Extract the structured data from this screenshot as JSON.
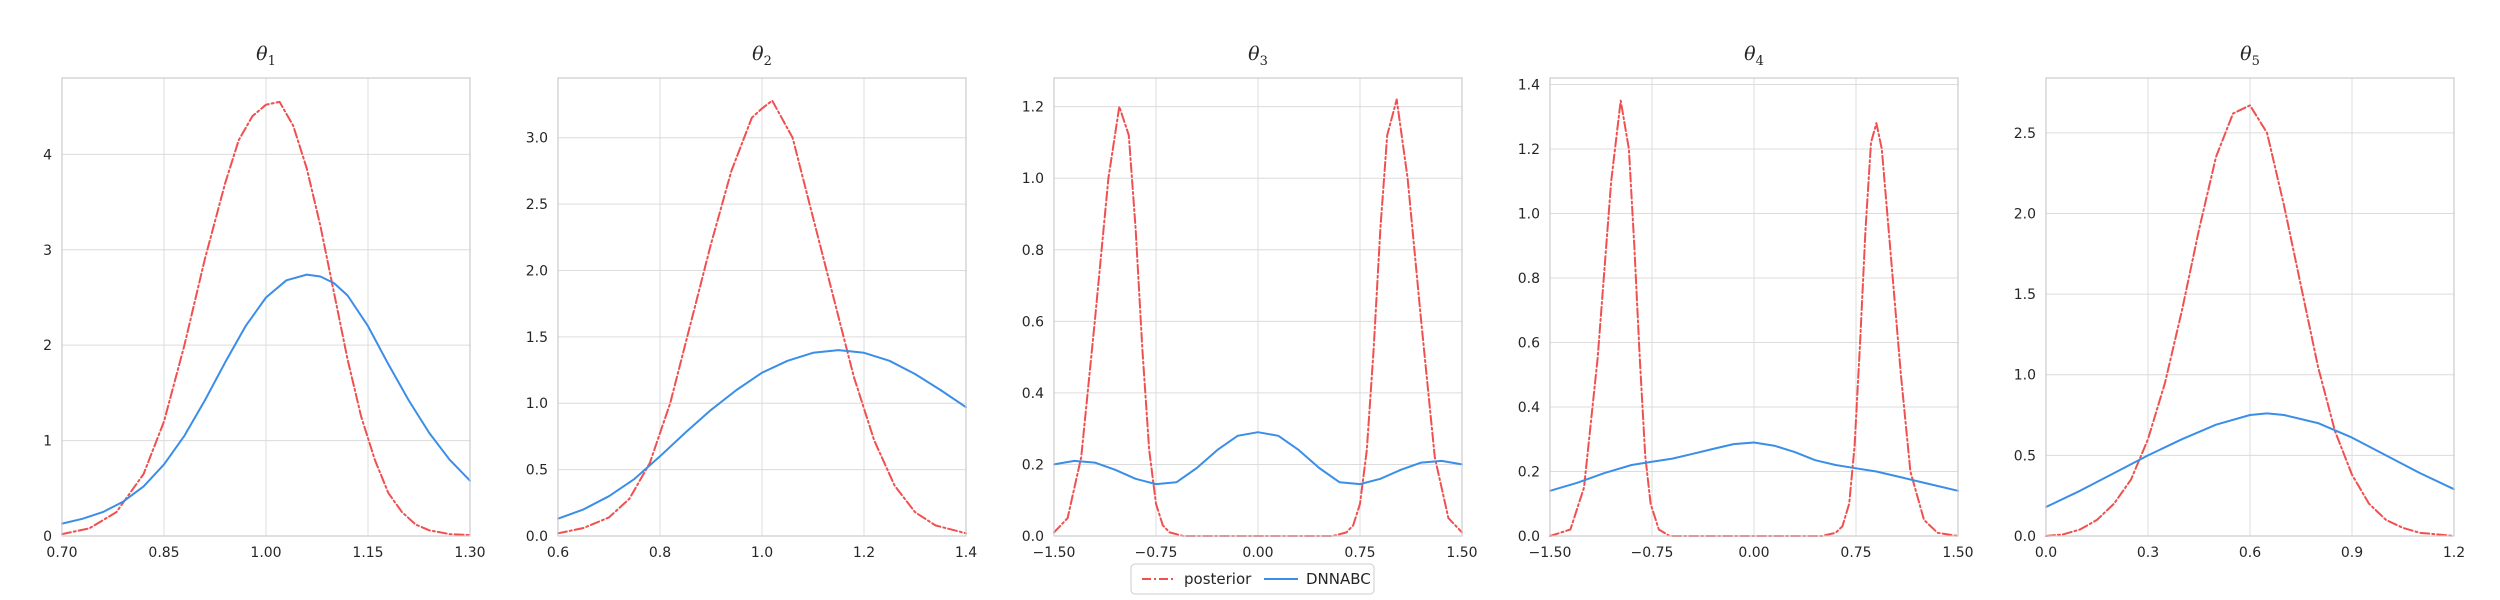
{
  "chart_data": [
    {
      "type": "line",
      "title": "θ1",
      "title_base": "θ",
      "title_sub": "1",
      "xlim": [
        0.7,
        1.3
      ],
      "ylim": [
        0,
        4.8
      ],
      "xticks": [
        0.7,
        0.85,
        1.0,
        1.15,
        1.3
      ],
      "xtick_labels": [
        "0.70",
        "0.85",
        "1.00",
        "1.15",
        "1.30"
      ],
      "yticks": [
        0,
        1,
        2,
        3,
        4
      ],
      "ytick_labels": [
        "0",
        "1",
        "2",
        "3",
        "4"
      ],
      "grid": true,
      "series": [
        {
          "name": "posterior",
          "x": [
            0.7,
            0.74,
            0.78,
            0.82,
            0.85,
            0.88,
            0.91,
            0.94,
            0.96,
            0.98,
            1.0,
            1.02,
            1.04,
            1.06,
            1.08,
            1.1,
            1.12,
            1.14,
            1.16,
            1.18,
            1.2,
            1.22,
            1.24,
            1.27,
            1.3
          ],
          "y": [
            0.02,
            0.08,
            0.25,
            0.65,
            1.2,
            2.0,
            2.9,
            3.7,
            4.15,
            4.4,
            4.52,
            4.55,
            4.3,
            3.85,
            3.25,
            2.55,
            1.85,
            1.25,
            0.8,
            0.45,
            0.25,
            0.12,
            0.06,
            0.02,
            0.01
          ]
        },
        {
          "name": "DNNABC",
          "x": [
            0.7,
            0.73,
            0.76,
            0.79,
            0.82,
            0.85,
            0.88,
            0.91,
            0.94,
            0.97,
            1.0,
            1.03,
            1.06,
            1.08,
            1.1,
            1.12,
            1.15,
            1.18,
            1.21,
            1.24,
            1.27,
            1.3
          ],
          "y": [
            0.13,
            0.18,
            0.25,
            0.36,
            0.52,
            0.75,
            1.05,
            1.42,
            1.82,
            2.2,
            2.5,
            2.68,
            2.74,
            2.72,
            2.65,
            2.52,
            2.2,
            1.8,
            1.42,
            1.08,
            0.8,
            0.58
          ]
        }
      ]
    },
    {
      "type": "line",
      "title": "θ2",
      "title_base": "θ",
      "title_sub": "2",
      "xlim": [
        0.6,
        1.4
      ],
      "ylim": [
        0,
        3.45
      ],
      "xticks": [
        0.6,
        0.8,
        1.0,
        1.2,
        1.4
      ],
      "xtick_labels": [
        "0.6",
        "0.8",
        "1.0",
        "1.2",
        "1.4"
      ],
      "yticks": [
        0,
        0.5,
        1.0,
        1.5,
        2.0,
        2.5,
        3.0
      ],
      "ytick_labels": [
        "0.0",
        "0.5",
        "1.0",
        "1.5",
        "2.0",
        "2.5",
        "3.0"
      ],
      "grid": true,
      "series": [
        {
          "name": "posterior",
          "x": [
            0.6,
            0.65,
            0.7,
            0.74,
            0.78,
            0.82,
            0.86,
            0.9,
            0.94,
            0.98,
            1.0,
            1.02,
            1.06,
            1.1,
            1.14,
            1.18,
            1.22,
            1.26,
            1.3,
            1.34,
            1.4
          ],
          "y": [
            0.02,
            0.06,
            0.14,
            0.28,
            0.55,
            1.0,
            1.6,
            2.2,
            2.75,
            3.15,
            3.22,
            3.28,
            3.0,
            2.4,
            1.8,
            1.2,
            0.72,
            0.38,
            0.18,
            0.08,
            0.02
          ]
        },
        {
          "name": "DNNABC",
          "x": [
            0.6,
            0.65,
            0.7,
            0.75,
            0.8,
            0.85,
            0.9,
            0.95,
            1.0,
            1.05,
            1.1,
            1.15,
            1.2,
            1.25,
            1.3,
            1.35,
            1.4
          ],
          "y": [
            0.13,
            0.2,
            0.3,
            0.43,
            0.6,
            0.78,
            0.95,
            1.1,
            1.23,
            1.32,
            1.38,
            1.4,
            1.38,
            1.32,
            1.22,
            1.1,
            0.97
          ]
        }
      ]
    },
    {
      "type": "line",
      "title": "θ3",
      "title_base": "θ",
      "title_sub": "3",
      "xlim": [
        -1.5,
        1.5
      ],
      "ylim": [
        0,
        1.28
      ],
      "xticks": [
        -1.5,
        -0.75,
        0.0,
        0.75,
        1.5
      ],
      "xtick_labels": [
        "−1.50",
        "−0.75",
        "0.00",
        "0.75",
        "1.50"
      ],
      "yticks": [
        0,
        0.2,
        0.4,
        0.6,
        0.8,
        1.0,
        1.2
      ],
      "ytick_labels": [
        "0.0",
        "0.2",
        "0.4",
        "0.6",
        "0.8",
        "1.0",
        "1.2"
      ],
      "grid": true,
      "series": [
        {
          "name": "posterior",
          "x": [
            -1.5,
            -1.4,
            -1.3,
            -1.2,
            -1.1,
            -1.02,
            -0.95,
            -0.9,
            -0.85,
            -0.8,
            -0.75,
            -0.7,
            -0.65,
            -0.55,
            -0.4,
            0.0,
            0.4,
            0.55,
            0.65,
            0.7,
            0.75,
            0.8,
            0.85,
            0.9,
            0.95,
            1.02,
            1.1,
            1.2,
            1.3,
            1.4,
            1.5
          ],
          "y": [
            0.01,
            0.05,
            0.22,
            0.6,
            1.0,
            1.2,
            1.12,
            0.86,
            0.52,
            0.24,
            0.09,
            0.03,
            0.01,
            0.0,
            0.0,
            0.0,
            0.0,
            0.0,
            0.01,
            0.03,
            0.09,
            0.24,
            0.52,
            0.86,
            1.12,
            1.22,
            1.0,
            0.6,
            0.22,
            0.05,
            0.01
          ]
        },
        {
          "name": "DNNABC",
          "x": [
            -1.5,
            -1.35,
            -1.2,
            -1.05,
            -0.9,
            -0.75,
            -0.6,
            -0.45,
            -0.3,
            -0.15,
            0.0,
            0.15,
            0.3,
            0.45,
            0.6,
            0.75,
            0.9,
            1.05,
            1.2,
            1.35,
            1.5
          ],
          "y": [
            0.2,
            0.21,
            0.205,
            0.185,
            0.16,
            0.145,
            0.15,
            0.19,
            0.24,
            0.28,
            0.29,
            0.28,
            0.24,
            0.19,
            0.15,
            0.145,
            0.16,
            0.185,
            0.205,
            0.21,
            0.2
          ]
        }
      ]
    },
    {
      "type": "line",
      "title": "θ4",
      "title_base": "θ",
      "title_sub": "4",
      "xlim": [
        -1.5,
        1.5
      ],
      "ylim": [
        0,
        1.42
      ],
      "xticks": [
        -1.5,
        -0.75,
        0.0,
        0.75,
        1.5
      ],
      "xtick_labels": [
        "−1.50",
        "−0.75",
        "0.00",
        "0.75",
        "1.50"
      ],
      "yticks": [
        0,
        0.2,
        0.4,
        0.6,
        0.8,
        1.0,
        1.2,
        1.4
      ],
      "ytick_labels": [
        "0.0",
        "0.2",
        "0.4",
        "0.6",
        "0.8",
        "1.0",
        "1.2",
        "1.4"
      ],
      "grid": true,
      "series": [
        {
          "name": "posterior",
          "x": [
            -1.5,
            -1.35,
            -1.25,
            -1.15,
            -1.05,
            -0.98,
            -0.92,
            -0.88,
            -0.84,
            -0.8,
            -0.76,
            -0.7,
            -0.62,
            -0.5,
            0.0,
            0.5,
            0.6,
            0.65,
            0.7,
            0.74,
            0.78,
            0.82,
            0.86,
            0.9,
            0.94,
            1.0,
            1.08,
            1.15,
            1.25,
            1.35,
            1.5
          ],
          "y": [
            0.0,
            0.02,
            0.15,
            0.55,
            1.1,
            1.35,
            1.2,
            0.9,
            0.55,
            0.25,
            0.1,
            0.02,
            0.0,
            0.0,
            0.0,
            0.0,
            0.01,
            0.03,
            0.1,
            0.28,
            0.6,
            0.95,
            1.22,
            1.28,
            1.2,
            0.9,
            0.5,
            0.2,
            0.05,
            0.01,
            0.0
          ]
        },
        {
          "name": "DNNABC",
          "x": [
            -1.5,
            -1.3,
            -1.1,
            -0.9,
            -0.75,
            -0.6,
            -0.45,
            -0.3,
            -0.15,
            0.0,
            0.15,
            0.3,
            0.45,
            0.6,
            0.75,
            0.9,
            1.1,
            1.3,
            1.5
          ],
          "y": [
            0.14,
            0.165,
            0.195,
            0.22,
            0.23,
            0.24,
            0.255,
            0.27,
            0.285,
            0.29,
            0.28,
            0.26,
            0.235,
            0.22,
            0.21,
            0.2,
            0.18,
            0.16,
            0.14
          ]
        }
      ]
    },
    {
      "type": "line",
      "title": "θ5",
      "title_base": "θ",
      "title_sub": "5",
      "xlim": [
        0.0,
        1.2
      ],
      "ylim": [
        0,
        2.84
      ],
      "xticks": [
        0.0,
        0.3,
        0.6,
        0.9,
        1.2
      ],
      "xtick_labels": [
        "0.0",
        "0.3",
        "0.6",
        "0.9",
        "1.2"
      ],
      "yticks": [
        0,
        0.5,
        1.0,
        1.5,
        2.0,
        2.5
      ],
      "ytick_labels": [
        "0.0",
        "0.5",
        "1.0",
        "1.5",
        "2.0",
        "2.5"
      ],
      "grid": true,
      "series": [
        {
          "name": "posterior",
          "x": [
            0.0,
            0.05,
            0.1,
            0.15,
            0.2,
            0.25,
            0.3,
            0.35,
            0.4,
            0.45,
            0.5,
            0.55,
            0.6,
            0.65,
            0.7,
            0.75,
            0.8,
            0.85,
            0.9,
            0.95,
            1.0,
            1.05,
            1.1,
            1.15,
            1.2
          ],
          "y": [
            0.0,
            0.01,
            0.04,
            0.1,
            0.2,
            0.35,
            0.6,
            0.95,
            1.4,
            1.9,
            2.35,
            2.62,
            2.67,
            2.5,
            2.05,
            1.55,
            1.05,
            0.65,
            0.38,
            0.2,
            0.1,
            0.05,
            0.02,
            0.01,
            0.0
          ]
        },
        {
          "name": "DNNABC",
          "x": [
            0.0,
            0.1,
            0.2,
            0.3,
            0.4,
            0.5,
            0.6,
            0.65,
            0.7,
            0.8,
            0.9,
            1.0,
            1.1,
            1.2
          ],
          "y": [
            0.18,
            0.28,
            0.39,
            0.5,
            0.6,
            0.69,
            0.75,
            0.76,
            0.75,
            0.7,
            0.61,
            0.5,
            0.39,
            0.29
          ]
        }
      ]
    }
  ],
  "legend": {
    "placement": "bottom-center",
    "entries": [
      {
        "name": "posterior",
        "color": "#f05050",
        "style": "dash-dot"
      },
      {
        "name": "DNNABC",
        "color": "#3b8ee8",
        "style": "solid"
      }
    ]
  },
  "colors": {
    "posterior": "#f05050",
    "dnnabc": "#3b8ee8",
    "grid": "#dcdcdc",
    "axes": "#cccccc"
  }
}
